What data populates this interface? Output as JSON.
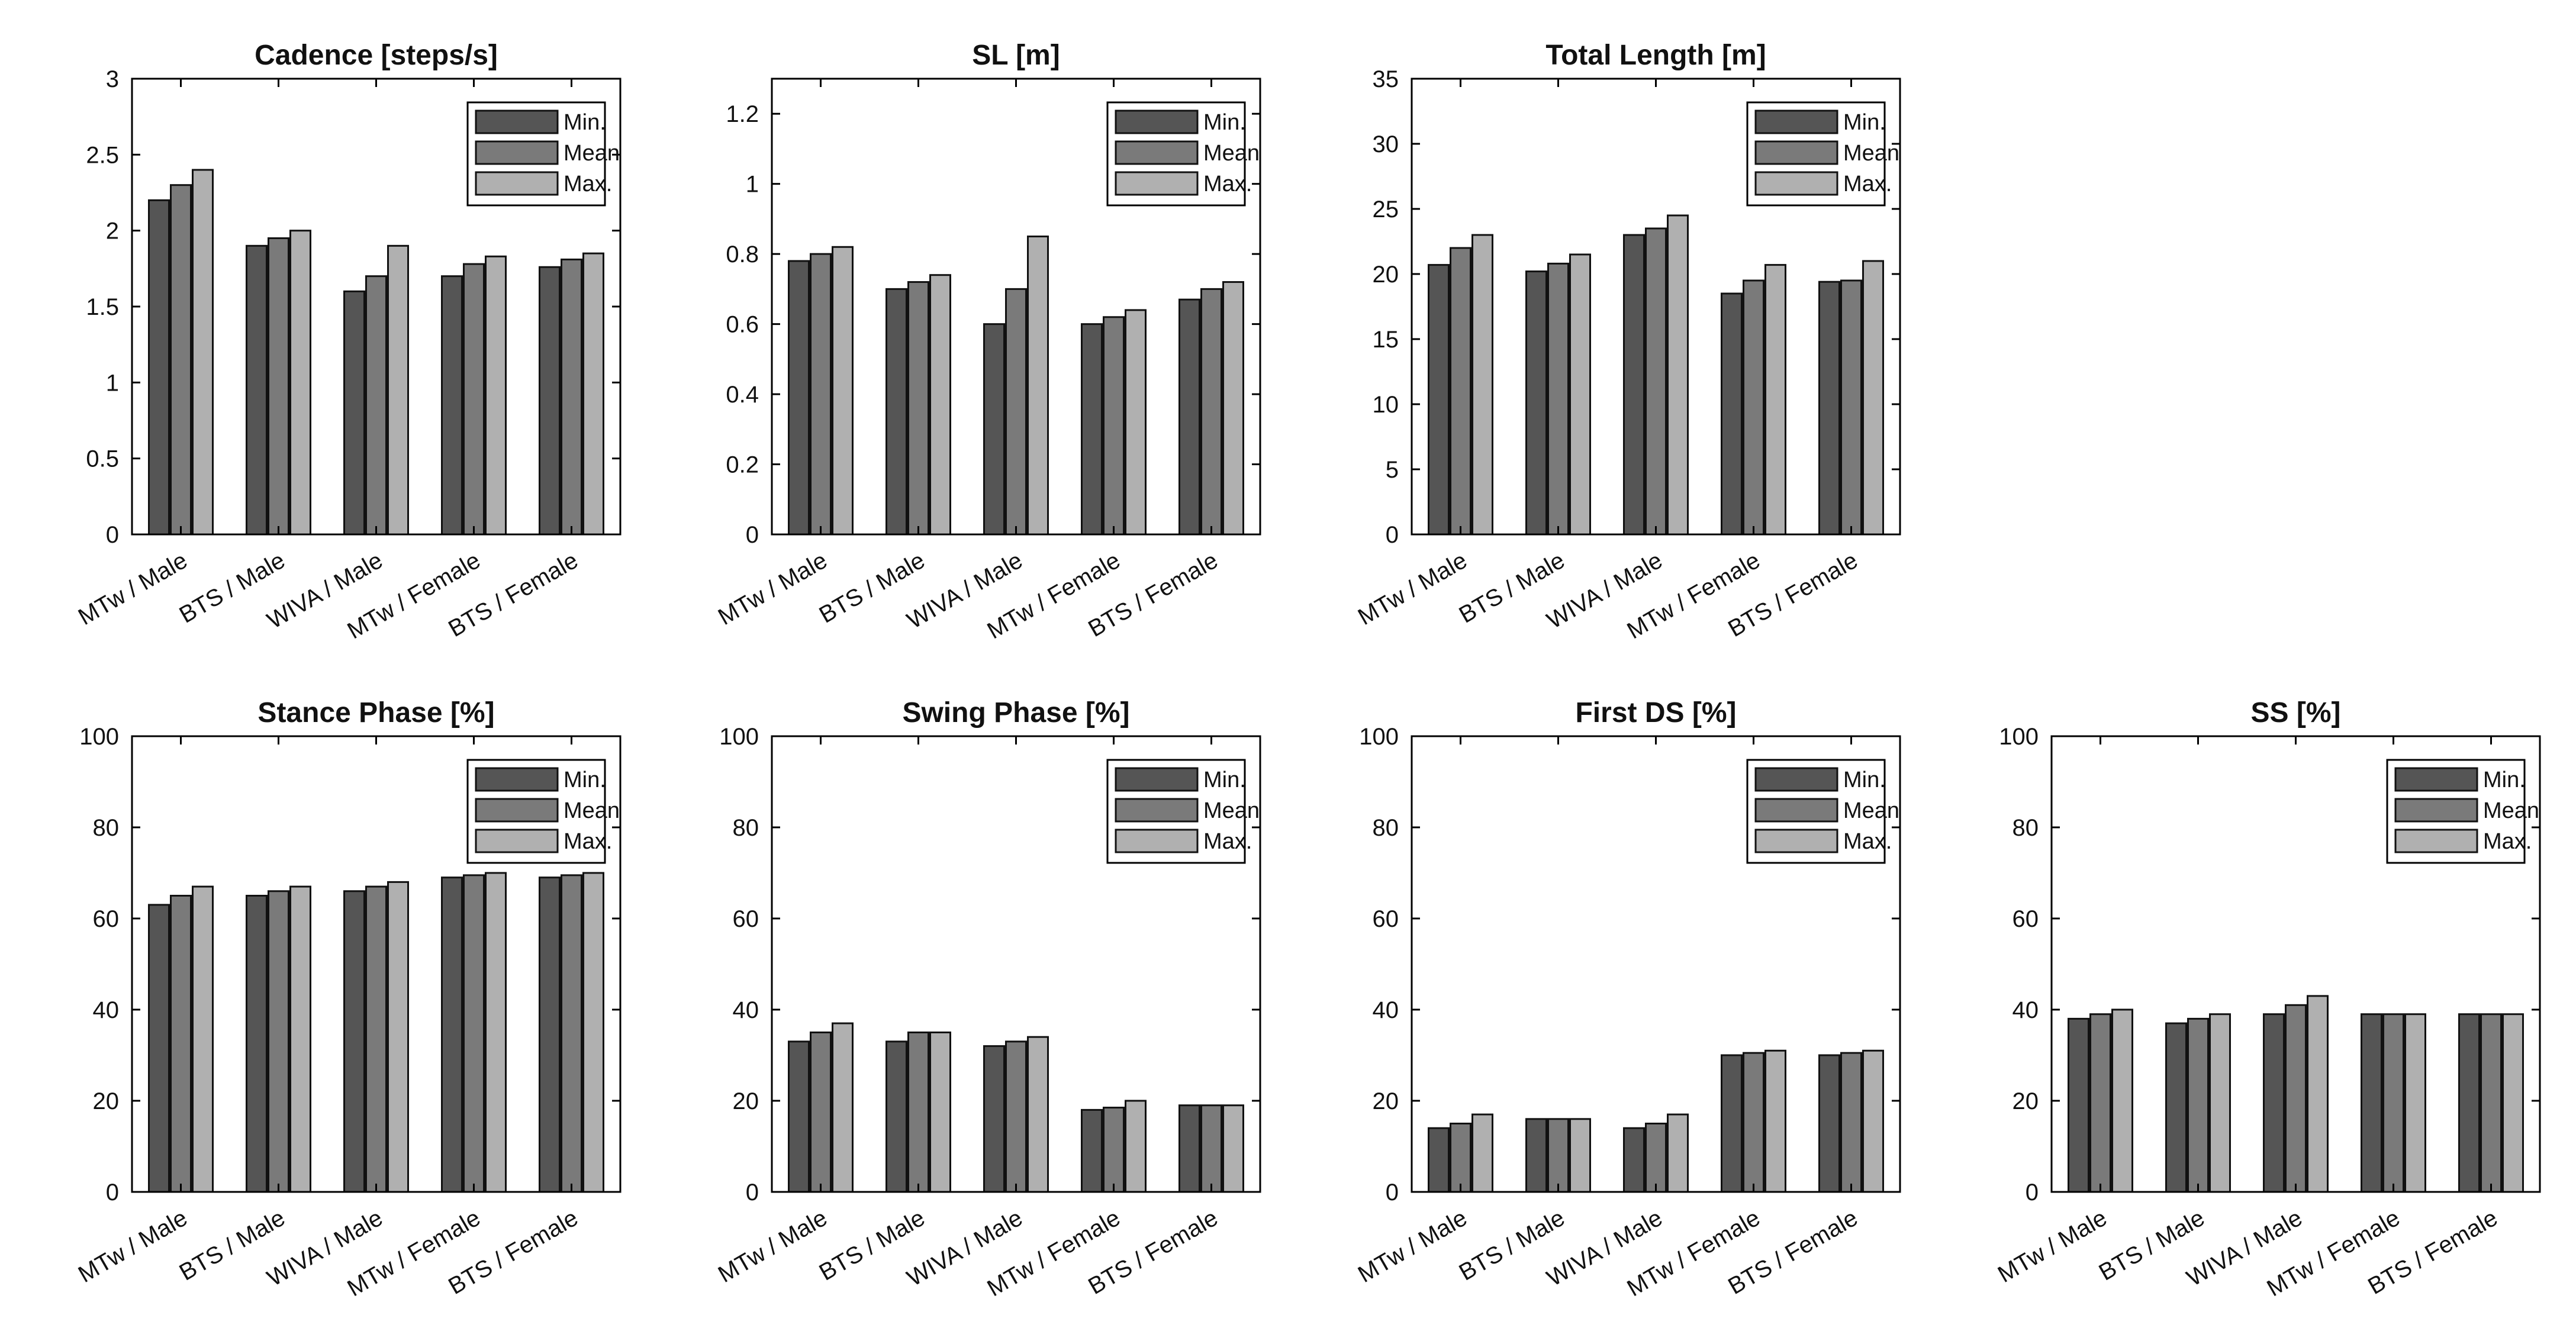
{
  "colors": {
    "min": "#555555",
    "mean": "#7a7a7a",
    "max": "#b0b0b0",
    "axis": "#000000",
    "bar_edge": "#111111"
  },
  "legend": [
    "Min.",
    "Mean",
    "Max."
  ],
  "categories": [
    "MTw / Male",
    "BTS / Male",
    "WIVA / Male",
    "MTw / Female",
    "BTS / Female"
  ],
  "chart_data": [
    {
      "type": "bar",
      "title": "Cadence [steps/s]",
      "categories": [
        "MTw / Male",
        "BTS / Male",
        "WIVA / Male",
        "MTw / Female",
        "BTS / Female"
      ],
      "series": [
        {
          "name": "Min.",
          "values": [
            2.2,
            1.9,
            1.6,
            1.7,
            1.76
          ]
        },
        {
          "name": "Mean",
          "values": [
            2.3,
            1.95,
            1.7,
            1.78,
            1.81
          ]
        },
        {
          "name": "Max.",
          "values": [
            2.4,
            2.0,
            1.9,
            1.83,
            1.85
          ]
        }
      ],
      "ylim": [
        0,
        3
      ],
      "yticks": [
        0,
        0.5,
        1,
        1.5,
        2,
        2.5,
        3
      ],
      "ytick_labels": [
        "0",
        "0.5",
        "1",
        "1.5",
        "2",
        "2.5",
        "3"
      ],
      "legend_position": "top-right"
    },
    {
      "type": "bar",
      "title": "SL [m]",
      "categories": [
        "MTw / Male",
        "BTS / Male",
        "WIVA / Male",
        "MTw / Female",
        "BTS / Female"
      ],
      "series": [
        {
          "name": "Min.",
          "values": [
            0.78,
            0.7,
            0.6,
            0.6,
            0.67
          ]
        },
        {
          "name": "Mean",
          "values": [
            0.8,
            0.72,
            0.7,
            0.62,
            0.7
          ]
        },
        {
          "name": "Max.",
          "values": [
            0.82,
            0.74,
            0.85,
            0.64,
            0.72
          ]
        }
      ],
      "ylim": [
        0,
        1.3
      ],
      "yticks": [
        0,
        0.2,
        0.4,
        0.6,
        0.8,
        1,
        1.2
      ],
      "ytick_labels": [
        "0",
        "0.2",
        "0.4",
        "0.6",
        "0.8",
        "1",
        "1.2"
      ],
      "legend_position": "top-right"
    },
    {
      "type": "bar",
      "title": "Total Length [m]",
      "categories": [
        "MTw / Male",
        "BTS / Male",
        "WIVA / Male",
        "MTw / Female",
        "BTS / Female"
      ],
      "series": [
        {
          "name": "Min.",
          "values": [
            20.7,
            20.2,
            23.0,
            18.5,
            19.4
          ]
        },
        {
          "name": "Mean",
          "values": [
            22.0,
            20.8,
            23.5,
            19.5,
            19.5
          ]
        },
        {
          "name": "Max.",
          "values": [
            23.0,
            21.5,
            24.5,
            20.7,
            21.0
          ]
        }
      ],
      "ylim": [
        0,
        35
      ],
      "yticks": [
        0,
        5,
        10,
        15,
        20,
        25,
        30,
        35
      ],
      "ytick_labels": [
        "0",
        "5",
        "10",
        "15",
        "20",
        "25",
        "30",
        "35"
      ],
      "legend_position": "top-right"
    },
    {
      "type": "bar",
      "title": "Stance Phase [%]",
      "categories": [
        "MTw / Male",
        "BTS / Male",
        "WIVA / Male",
        "MTw / Female",
        "BTS / Female"
      ],
      "series": [
        {
          "name": "Min.",
          "values": [
            63,
            65,
            66,
            69,
            69
          ]
        },
        {
          "name": "Mean",
          "values": [
            65,
            66,
            67,
            69.5,
            69.5
          ]
        },
        {
          "name": "Max.",
          "values": [
            67,
            67,
            68,
            70,
            70
          ]
        }
      ],
      "ylim": [
        0,
        100
      ],
      "yticks": [
        0,
        20,
        40,
        60,
        80,
        100
      ],
      "ytick_labels": [
        "0",
        "20",
        "40",
        "60",
        "80",
        "100"
      ],
      "legend_position": "top-right"
    },
    {
      "type": "bar",
      "title": "Swing Phase [%]",
      "categories": [
        "MTw / Male",
        "BTS / Male",
        "WIVA / Male",
        "MTw / Female",
        "BTS / Female"
      ],
      "series": [
        {
          "name": "Min.",
          "values": [
            33,
            33,
            32,
            18,
            19
          ]
        },
        {
          "name": "Mean",
          "values": [
            35,
            35,
            33,
            18.5,
            19
          ]
        },
        {
          "name": "Max.",
          "values": [
            37,
            35,
            34,
            20,
            19
          ]
        }
      ],
      "ylim": [
        0,
        100
      ],
      "yticks": [
        0,
        20,
        40,
        60,
        80,
        100
      ],
      "ytick_labels": [
        "0",
        "20",
        "40",
        "60",
        "80",
        "100"
      ],
      "legend_position": "top-right"
    },
    {
      "type": "bar",
      "title": "First DS [%]",
      "categories": [
        "MTw / Male",
        "BTS / Male",
        "WIVA / Male",
        "MTw / Female",
        "BTS / Female"
      ],
      "series": [
        {
          "name": "Min.",
          "values": [
            14,
            16,
            14,
            30,
            30
          ]
        },
        {
          "name": "Mean",
          "values": [
            15,
            16,
            15,
            30.5,
            30.5
          ]
        },
        {
          "name": "Max.",
          "values": [
            17,
            16,
            17,
            31,
            31
          ]
        }
      ],
      "ylim": [
        0,
        100
      ],
      "yticks": [
        0,
        20,
        40,
        60,
        80,
        100
      ],
      "ytick_labels": [
        "0",
        "20",
        "40",
        "60",
        "80",
        "100"
      ],
      "legend_position": "top-right"
    },
    {
      "type": "bar",
      "title": "SS [%]",
      "categories": [
        "MTw / Male",
        "BTS / Male",
        "WIVA / Male",
        "MTw / Female",
        "BTS / Female"
      ],
      "series": [
        {
          "name": "Min.",
          "values": [
            38,
            37,
            39,
            39,
            39
          ]
        },
        {
          "name": "Mean",
          "values": [
            39,
            38,
            41,
            39,
            39
          ]
        },
        {
          "name": "Max.",
          "values": [
            40,
            39,
            43,
            39,
            39
          ]
        }
      ],
      "ylim": [
        0,
        100
      ],
      "yticks": [
        0,
        20,
        40,
        60,
        80,
        100
      ],
      "ytick_labels": [
        "0",
        "20",
        "40",
        "60",
        "80",
        "100"
      ],
      "legend_position": "top-right"
    }
  ]
}
